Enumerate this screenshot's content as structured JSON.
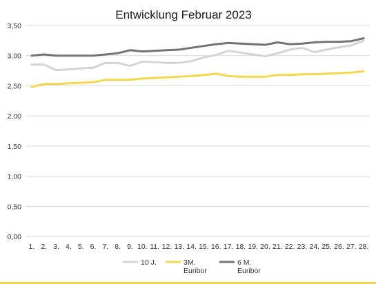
{
  "chart_data": {
    "type": "line",
    "title": "Entwicklung Februar 2023",
    "xlabel": "",
    "ylabel": "",
    "categories": [
      "1.",
      "2.",
      "3.",
      "4.",
      "5.",
      "6.",
      "7.",
      "8.",
      "9.",
      "10.",
      "11.",
      "12.",
      "13.",
      "14.",
      "15.",
      "16.",
      "17.",
      "18.",
      "19.",
      "20.",
      "21.",
      "22.",
      "23.",
      "24.",
      "25.",
      "26.",
      "27.",
      "28."
    ],
    "y_ticks": [
      "0,00",
      "0,50",
      "1,00",
      "1,50",
      "2,00",
      "2,50",
      "3,00",
      "3,50"
    ],
    "ylim": [
      0,
      3.5
    ],
    "grid": true,
    "legend_position": "bottom",
    "series": [
      {
        "name": "10 J.",
        "name_lines": [
          "10 J."
        ],
        "color": "#d4d4d4",
        "values": [
          2.85,
          2.85,
          2.76,
          2.77,
          2.79,
          2.8,
          2.88,
          2.88,
          2.83,
          2.9,
          2.89,
          2.88,
          2.88,
          2.91,
          2.97,
          3.01,
          3.08,
          3.05,
          3.02,
          2.99,
          3.04,
          3.1,
          3.13,
          3.06,
          3.1,
          3.14,
          3.17,
          3.25
        ]
      },
      {
        "name": "3M. Euribor",
        "name_lines": [
          "3M.",
          "Euribor"
        ],
        "color": "#f3d84e",
        "values": [
          2.48,
          2.53,
          2.53,
          2.54,
          2.55,
          2.56,
          2.6,
          2.6,
          2.6,
          2.62,
          2.63,
          2.64,
          2.65,
          2.66,
          2.68,
          2.7,
          2.66,
          2.65,
          2.65,
          2.65,
          2.68,
          2.68,
          2.69,
          2.69,
          2.7,
          2.71,
          2.72,
          2.74
        ]
      },
      {
        "name": "6 M. Euribor",
        "name_lines": [
          "6 M.",
          "Euribor"
        ],
        "color": "#737373",
        "values": [
          3.0,
          3.02,
          3.0,
          3.0,
          3.0,
          3.0,
          3.02,
          3.04,
          3.09,
          3.07,
          3.08,
          3.09,
          3.1,
          3.13,
          3.16,
          3.19,
          3.21,
          3.2,
          3.19,
          3.18,
          3.22,
          3.19,
          3.2,
          3.22,
          3.23,
          3.23,
          3.24,
          3.29
        ]
      }
    ]
  }
}
